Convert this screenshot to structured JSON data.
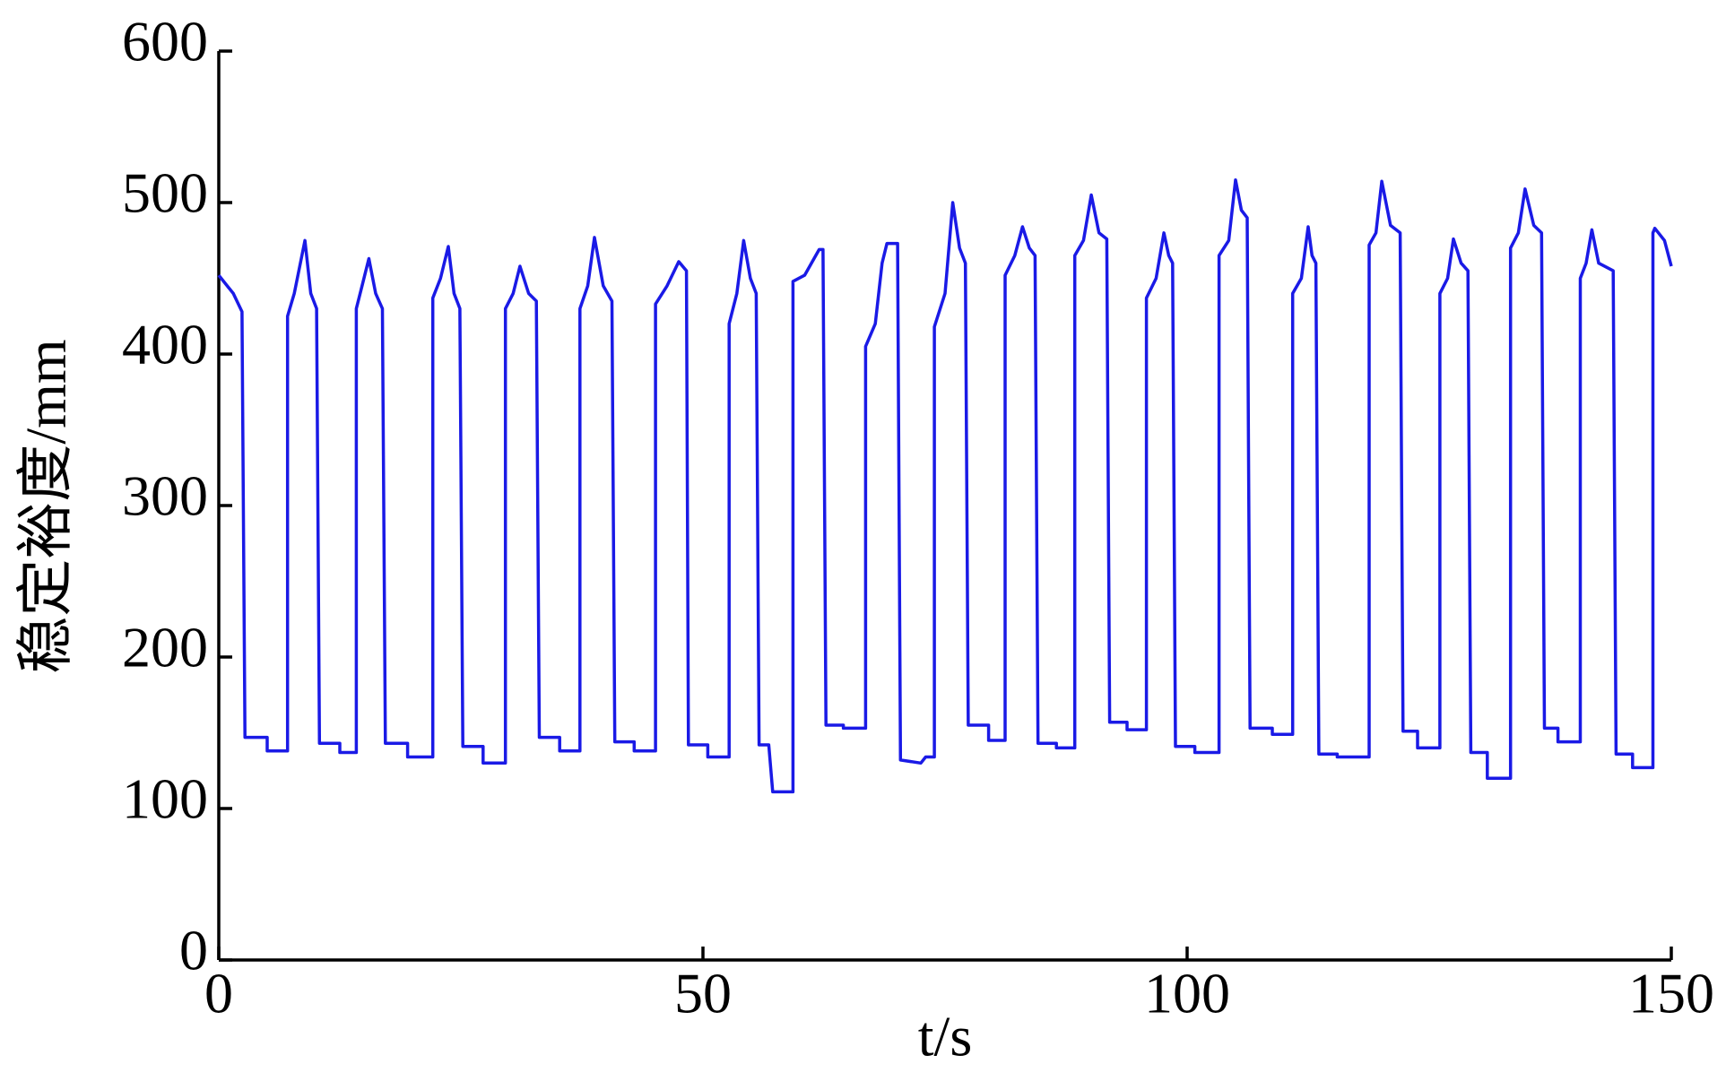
{
  "chart_data": {
    "type": "line",
    "xlabel": "t/s",
    "ylabel": "稳定裕度/mm",
    "x": [
      0,
      1.5,
      2.4,
      2.7,
      5,
      5,
      7.1,
      7.1,
      7.8,
      8.9,
      9.5,
      10.1,
      10.4,
      12.5,
      12.5,
      14.2,
      14.2,
      14.8,
      15.5,
      16.2,
      16.9,
      17.2,
      19.5,
      19.5,
      22.1,
      22.1,
      22.9,
      23.7,
      24.3,
      24.9,
      25.2,
      27.3,
      27.3,
      29.6,
      29.6,
      30.4,
      31.1,
      32,
      32.8,
      33.1,
      35.2,
      35.2,
      37.3,
      37.3,
      38.1,
      38.8,
      39.7,
      40.6,
      40.9,
      42.9,
      42.9,
      45.1,
      45.1,
      46.3,
      47.5,
      48.3,
      48.5,
      50.5,
      50.5,
      52.7,
      52.7,
      53.5,
      54.2,
      54.9,
      55.5,
      55.8,
      56.8,
      57.2,
      59.3,
      59.3,
      60.5,
      62.0,
      62.4,
      62.7,
      64.5,
      64.5,
      66.8,
      66.8,
      67.8,
      68.5,
      69.0,
      70.1,
      70.4,
      72.5,
      73.0,
      73.9,
      73.9,
      75.0,
      75.8,
      76.5,
      77.1,
      77.4,
      79.5,
      79.5,
      81.2,
      81.2,
      82.2,
      83.0,
      83.7,
      84.3,
      84.6,
      86.5,
      86.5,
      88.4,
      88.4,
      89.3,
      90.1,
      90.9,
      91.7,
      92.0,
      93.8,
      93.8,
      95.8,
      95.8,
      96.8,
      97.6,
      98.1,
      98.5,
      98.8,
      100.8,
      100.8,
      103.3,
      103.3,
      104.3,
      105.0,
      105.6,
      106.2,
      106.5,
      108.8,
      108.8,
      110.9,
      110.9,
      111.8,
      112.5,
      112.9,
      113.3,
      113.6,
      115.5,
      115.5,
      118.8,
      118.8,
      119.5,
      120.1,
      121.0,
      122.0,
      122.3,
      123.8,
      123.8,
      126.1,
      126.1,
      126.9,
      127.5,
      128.3,
      129.0,
      129.3,
      131.0,
      131.0,
      133.4,
      133.4,
      134.2,
      134.9,
      135.8,
      136.6,
      136.9,
      138.3,
      138.3,
      140.6,
      140.6,
      141.2,
      141.8,
      142.5,
      144.0,
      144.3,
      146.0,
      146.0,
      148.1,
      148.1,
      148.3,
      149.3,
      150
    ],
    "values": [
      452,
      440,
      428,
      147,
      147,
      138,
      138,
      425,
      440,
      475,
      440,
      430,
      143,
      143,
      137,
      137,
      430,
      445,
      463,
      440,
      430,
      143,
      143,
      134,
      134,
      437,
      450,
      471,
      440,
      430,
      141,
      141,
      130,
      130,
      430,
      440,
      458,
      440,
      435,
      147,
      147,
      138,
      138,
      430,
      445,
      477,
      445,
      435,
      144,
      144,
      138,
      138,
      433,
      445,
      461,
      455,
      142,
      142,
      134,
      134,
      420,
      440,
      475,
      450,
      440,
      142,
      142,
      111,
      111,
      448,
      452,
      469,
      469,
      155,
      155,
      153,
      153,
      405,
      420,
      460,
      473,
      473,
      132,
      130,
      134,
      134,
      418,
      440,
      500,
      470,
      460,
      155,
      155,
      145,
      145,
      452,
      465,
      484,
      470,
      465,
      143,
      143,
      140,
      140,
      465,
      475,
      505,
      480,
      476,
      157,
      157,
      152,
      152,
      437,
      450,
      480,
      465,
      460,
      141,
      141,
      137,
      137,
      465,
      475,
      515,
      495,
      490,
      153,
      153,
      149,
      149,
      440,
      450,
      484,
      465,
      460,
      136,
      136,
      134,
      134,
      472,
      480,
      514,
      485,
      480,
      151,
      151,
      140,
      140,
      440,
      450,
      476,
      460,
      455,
      137,
      137,
      120,
      120,
      470,
      480,
      509,
      485,
      480,
      153,
      153,
      144,
      144,
      450,
      460,
      482,
      460,
      455,
      136,
      136,
      127,
      127,
      480,
      483,
      475,
      458
    ],
    "color": "#1a1ae6",
    "xlim": [
      0,
      150
    ],
    "xticks": [
      0,
      50,
      100,
      150
    ],
    "ylim": [
      0,
      600
    ],
    "yticks": [
      0,
      100,
      200,
      300,
      400,
      500,
      600
    ],
    "grid": false
  }
}
